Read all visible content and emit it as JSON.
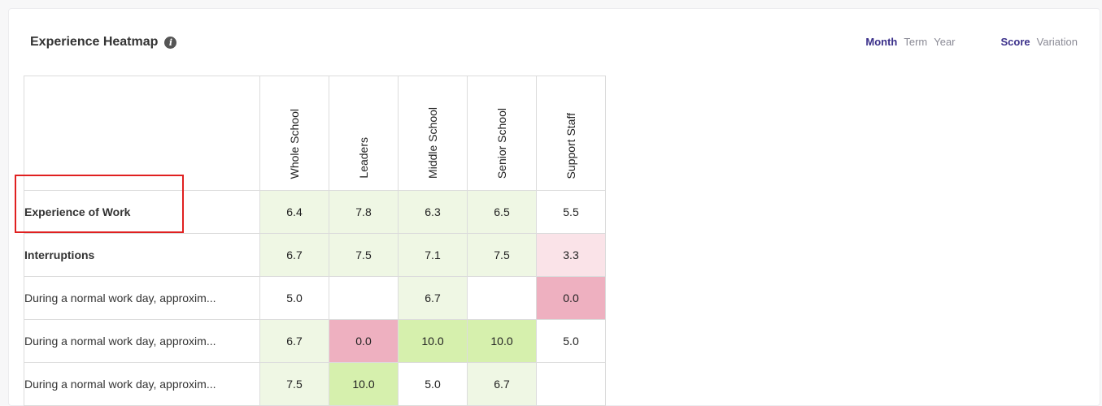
{
  "header": {
    "title": "Experience Heatmap",
    "info_icon": "info-icon"
  },
  "period_toggle": [
    {
      "label": "Month",
      "active": true
    },
    {
      "label": "Term",
      "active": false
    },
    {
      "label": "Year",
      "active": false
    }
  ],
  "mode_toggle": [
    {
      "label": "Score",
      "active": true
    },
    {
      "label": "Variation",
      "active": false
    }
  ],
  "columns": [
    "Whole School",
    "Leaders",
    "Middle School",
    "Senior School",
    "Support Staff"
  ],
  "rows": [
    {
      "label": "Experience of Work",
      "bold": true,
      "cells": [
        {
          "v": "6.4",
          "c": "lightgreen"
        },
        {
          "v": "7.8",
          "c": "lightgreen"
        },
        {
          "v": "6.3",
          "c": "lightgreen"
        },
        {
          "v": "6.5",
          "c": "lightgreen"
        },
        {
          "v": "5.5",
          "c": "white"
        }
      ]
    },
    {
      "label": "Interruptions",
      "bold": true,
      "cells": [
        {
          "v": "6.7",
          "c": "lightgreen"
        },
        {
          "v": "7.5",
          "c": "lightgreen"
        },
        {
          "v": "7.1",
          "c": "lightgreen"
        },
        {
          "v": "7.5",
          "c": "lightgreen"
        },
        {
          "v": "3.3",
          "c": "lightpink"
        }
      ]
    },
    {
      "label": "During a normal work day, approxim...",
      "bold": false,
      "cells": [
        {
          "v": "5.0",
          "c": "white"
        },
        {
          "v": "",
          "c": "white"
        },
        {
          "v": "6.7",
          "c": "lightgreen"
        },
        {
          "v": "",
          "c": "white"
        },
        {
          "v": "0.0",
          "c": "pink"
        }
      ]
    },
    {
      "label": "During a normal work day, approxim...",
      "bold": false,
      "cells": [
        {
          "v": "6.7",
          "c": "lightgreen"
        },
        {
          "v": "0.0",
          "c": "pink"
        },
        {
          "v": "10.0",
          "c": "green"
        },
        {
          "v": "10.0",
          "c": "green"
        },
        {
          "v": "5.0",
          "c": "white"
        }
      ]
    },
    {
      "label": "During a normal work day, approxim...",
      "bold": false,
      "cells": [
        {
          "v": "7.5",
          "c": "lightgreen"
        },
        {
          "v": "10.0",
          "c": "green"
        },
        {
          "v": "5.0",
          "c": "white"
        },
        {
          "v": "6.7",
          "c": "lightgreen"
        },
        {
          "v": "",
          "c": "white"
        }
      ]
    }
  ],
  "colors": {
    "accent": "#3a2f8a",
    "highlight": "#e02020",
    "lightgreen": "#eff7e4",
    "green": "#d6f0ad",
    "lightpink": "#fae3e8",
    "pink": "#eeb0c0"
  }
}
